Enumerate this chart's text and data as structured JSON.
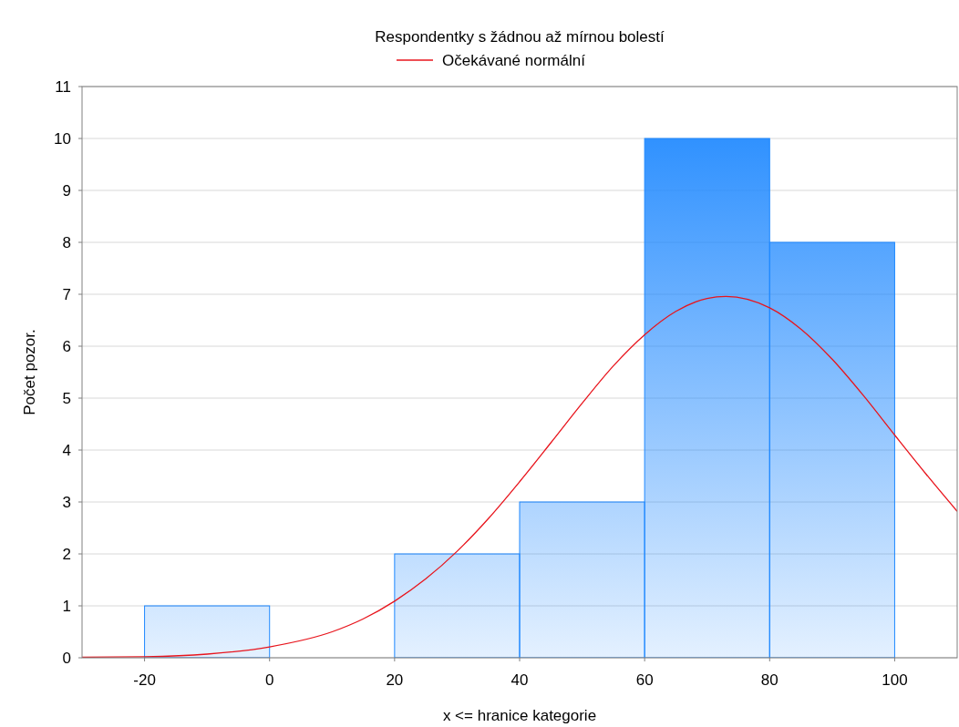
{
  "chart_data": {
    "type": "histogram",
    "title": "Respondentky s žádnou až mírnou bolestí",
    "xlabel": "x <= hranice kategorie",
    "ylabel": "Počet pozor.",
    "bins": [
      -20,
      0,
      20,
      40,
      60,
      80,
      100
    ],
    "series": [
      {
        "color": "#1e88ff",
        "values": [
          1,
          0,
          2,
          3,
          10,
          8
        ]
      },
      {
        "type": "line",
        "name": "Očekávané normální",
        "color": "#e8141c",
        "x": [
          -30,
          -20,
          -10,
          0,
          10,
          15,
          20,
          25,
          30,
          35,
          40,
          45,
          50,
          55,
          60,
          65,
          70,
          73,
          80,
          85,
          90,
          95,
          100,
          105,
          110
        ],
        "values": [
          0.01,
          0.02,
          0.07,
          0.21,
          0.5,
          0.75,
          1.09,
          1.52,
          2.05,
          2.68,
          3.39,
          4.14,
          4.9,
          5.62,
          6.22,
          6.67,
          6.92,
          6.96,
          6.74,
          6.33,
          5.75,
          5.05,
          4.29,
          3.54,
          2.82
        ]
      }
    ],
    "xlim": [
      -30,
      110
    ],
    "xticks": [
      -20,
      0,
      20,
      40,
      60,
      80,
      100
    ],
    "ylim": [
      0,
      11
    ],
    "yticks": [
      0,
      1,
      2,
      3,
      4,
      5,
      6,
      7,
      8,
      9,
      10,
      11
    ],
    "grid": "y",
    "legend": "top",
    "marker": "none",
    "line_style": "solid"
  }
}
